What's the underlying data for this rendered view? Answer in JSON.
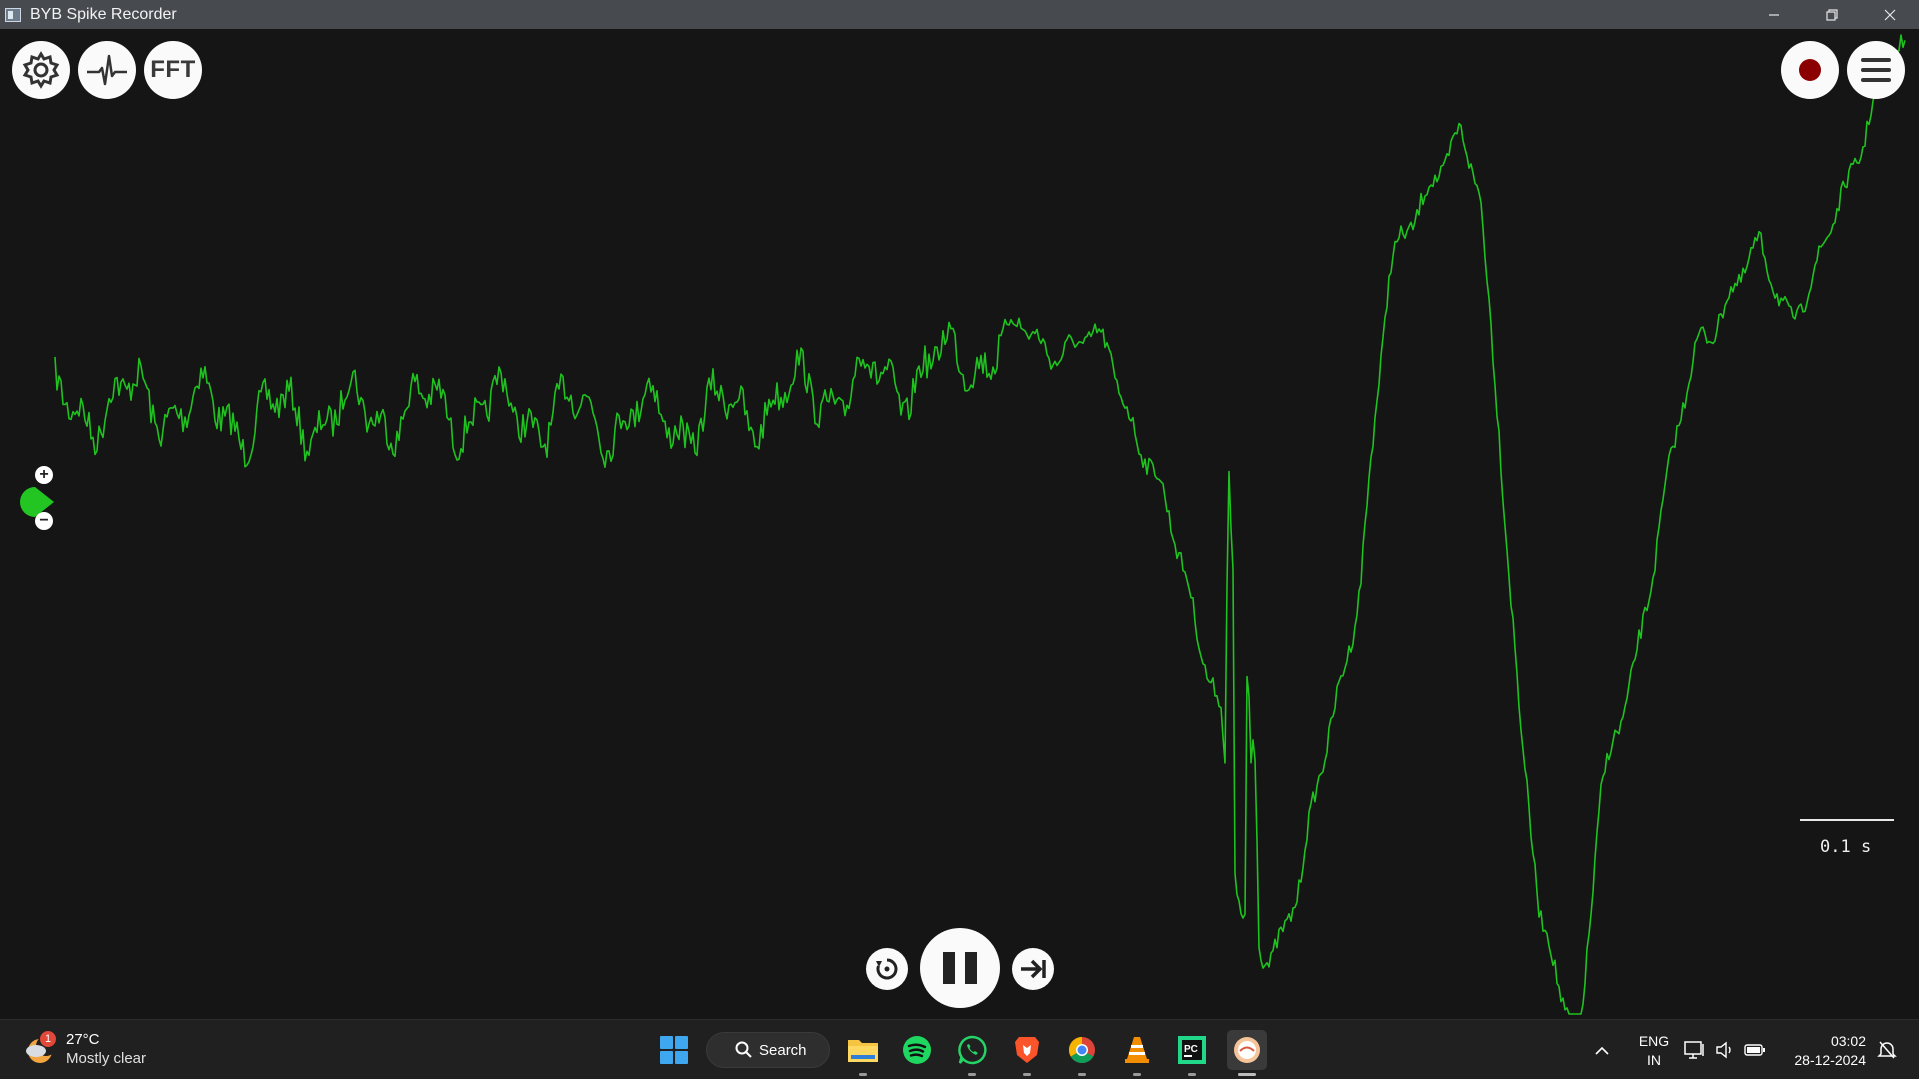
{
  "window": {
    "title": "BYB Spike Recorder"
  },
  "toolbar": {
    "settings_icon": "gear-icon",
    "threshold_icon": "spike-waveform-icon",
    "fft_label": "FFT",
    "record_icon": "record-icon",
    "menu_icon": "hamburger-menu-icon"
  },
  "channel": {
    "color": "#22c522",
    "zoom_in_label": "+",
    "zoom_out_label": "−"
  },
  "scale": {
    "label": "0.1 s"
  },
  "playback": {
    "rewind_icon": "rewind-icon",
    "pause_icon": "pause-icon",
    "forward_icon": "skip-forward-icon"
  },
  "taskbar": {
    "weather": {
      "temp": "27°C",
      "desc": "Mostly clear",
      "badge": "1"
    },
    "search_label": "Search",
    "apps": [
      "windows-start-icon",
      "file-explorer-icon",
      "spotify-icon",
      "whatsapp-icon",
      "brave-icon",
      "chrome-icon",
      "vlc-icon",
      "pycharm-icon",
      "byb-spike-recorder-icon"
    ],
    "lang_line1": "ENG",
    "lang_line2": "IN",
    "time": "03:02",
    "date": "28-12-2024"
  },
  "colors": {
    "signal": "#1fc21f",
    "background": "#151515",
    "record_dot": "#8b0000"
  }
}
